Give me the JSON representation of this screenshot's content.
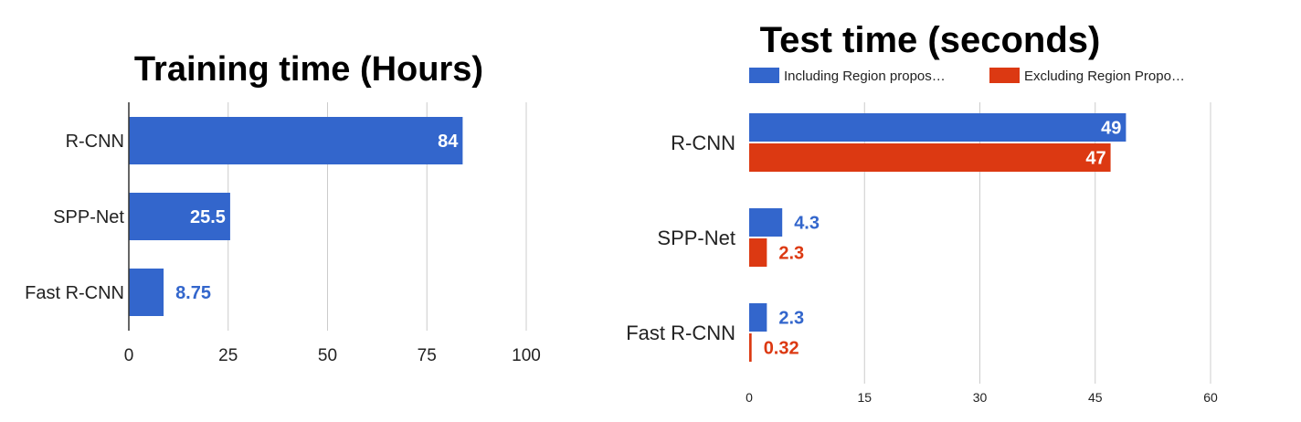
{
  "chart_data": [
    {
      "type": "bar",
      "orientation": "horizontal",
      "title": "Training time (Hours)",
      "categories": [
        "R-CNN",
        "SPP-Net",
        "Fast R-CNN"
      ],
      "series": [
        {
          "values": [
            84,
            25.5,
            8.75
          ],
          "labels": [
            "84",
            "25.5",
            "8.75"
          ],
          "color": "#3366cc"
        }
      ],
      "xlim": [
        0,
        100
      ],
      "xticks": [
        0,
        25,
        50,
        75,
        100
      ],
      "xtick_labels": [
        "0",
        "25",
        "50",
        "75",
        "100"
      ],
      "grid": true,
      "legend": "none"
    },
    {
      "type": "bar",
      "orientation": "horizontal",
      "title": "Test time (seconds)",
      "categories": [
        "R-CNN",
        "SPP-Net",
        "Fast R-CNN"
      ],
      "series": [
        {
          "name": "Including Region propos…",
          "values": [
            49,
            4.3,
            2.3
          ],
          "labels": [
            "49",
            "4.3",
            "2.3"
          ],
          "color": "#3366cc"
        },
        {
          "name": "Excluding Region Propo…",
          "values": [
            47,
            2.3,
            0.32
          ],
          "labels": [
            "47",
            "2.3",
            "0.32"
          ],
          "color": "#dc3912"
        }
      ],
      "xlim": [
        0,
        60
      ],
      "xticks": [
        0,
        15,
        30,
        45,
        60
      ],
      "xtick_labels": [
        "0",
        "15",
        "30",
        "45",
        "60"
      ],
      "grid": true,
      "legend": "top"
    }
  ]
}
